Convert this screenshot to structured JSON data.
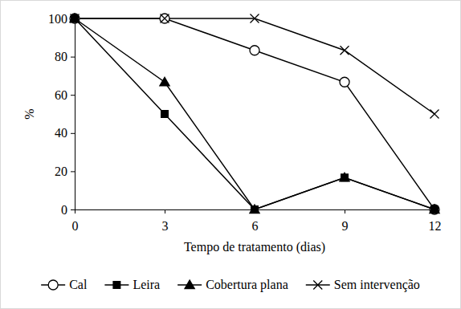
{
  "chart_data": {
    "type": "line",
    "x_label": "Tempo de tratamento (dias)",
    "y_label": "%",
    "x": [
      0,
      3,
      6,
      9,
      12
    ],
    "xlim": [
      0,
      12
    ],
    "xticks": [
      0,
      3,
      6,
      9,
      12
    ],
    "ylim": [
      0,
      100
    ],
    "yticks": [
      0,
      20,
      40,
      60,
      80,
      100
    ],
    "grid": false,
    "legend": "bottom",
    "series": [
      {
        "name": "Cal",
        "color": "#000000",
        "marker": "circle-open",
        "line_style": "solid",
        "values": [
          100,
          100,
          83.3,
          66.7,
          0
        ]
      },
      {
        "name": "Leira",
        "color": "#000000",
        "marker": "square",
        "line_style": "solid",
        "values": [
          100,
          50,
          0,
          16.7,
          0
        ]
      },
      {
        "name": "Cobertura plana",
        "color": "#000000",
        "marker": "triangle",
        "line_style": "solid",
        "values": [
          100,
          66.7,
          0,
          16.7,
          0
        ]
      },
      {
        "name": "Sem intervenção",
        "color": "#000000",
        "marker": "x",
        "line_style": "solid",
        "values": [
          100,
          100,
          100,
          83.3,
          50
        ]
      }
    ]
  }
}
